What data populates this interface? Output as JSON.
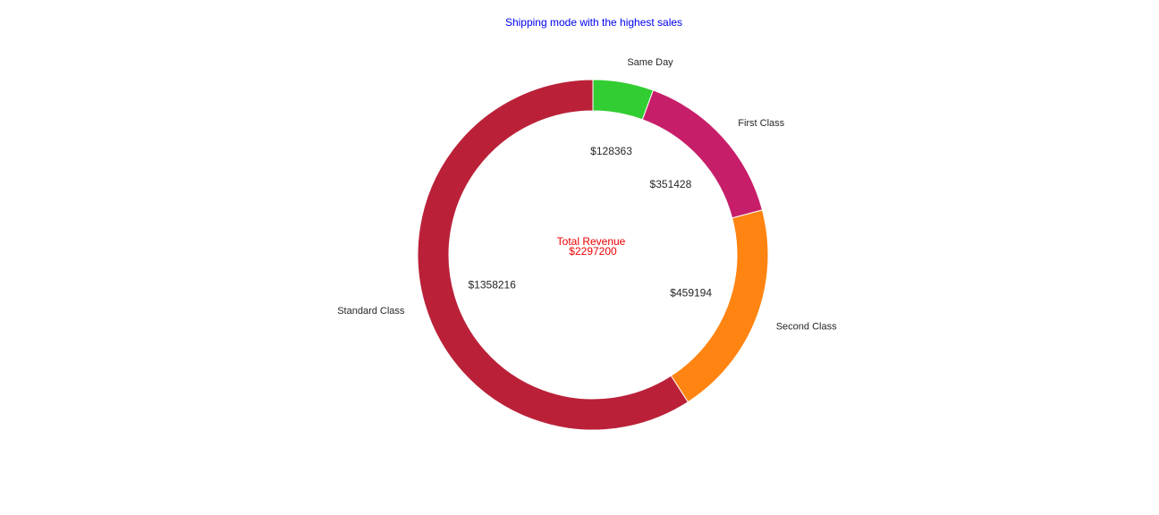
{
  "chart_data": {
    "type": "pie",
    "style": "donut",
    "title": "Shipping mode with the highest sales",
    "title_color": "#0000ee",
    "categories": [
      "Same Day",
      "First Class",
      "Second Class",
      "Standard Class"
    ],
    "values": [
      128363,
      351428,
      459194,
      1358216
    ],
    "value_labels": [
      "$128363",
      "$351428",
      "$459194",
      "$1358216"
    ],
    "colors": [
      "#32cd32",
      "#c71e6a",
      "#ff8411",
      "#ba2138"
    ],
    "start_angle": "12 o'clock",
    "direction": "clockwise",
    "center_text": {
      "line1": "Total Revenue",
      "line2": "$2297200",
      "color": "#ee0000"
    }
  }
}
